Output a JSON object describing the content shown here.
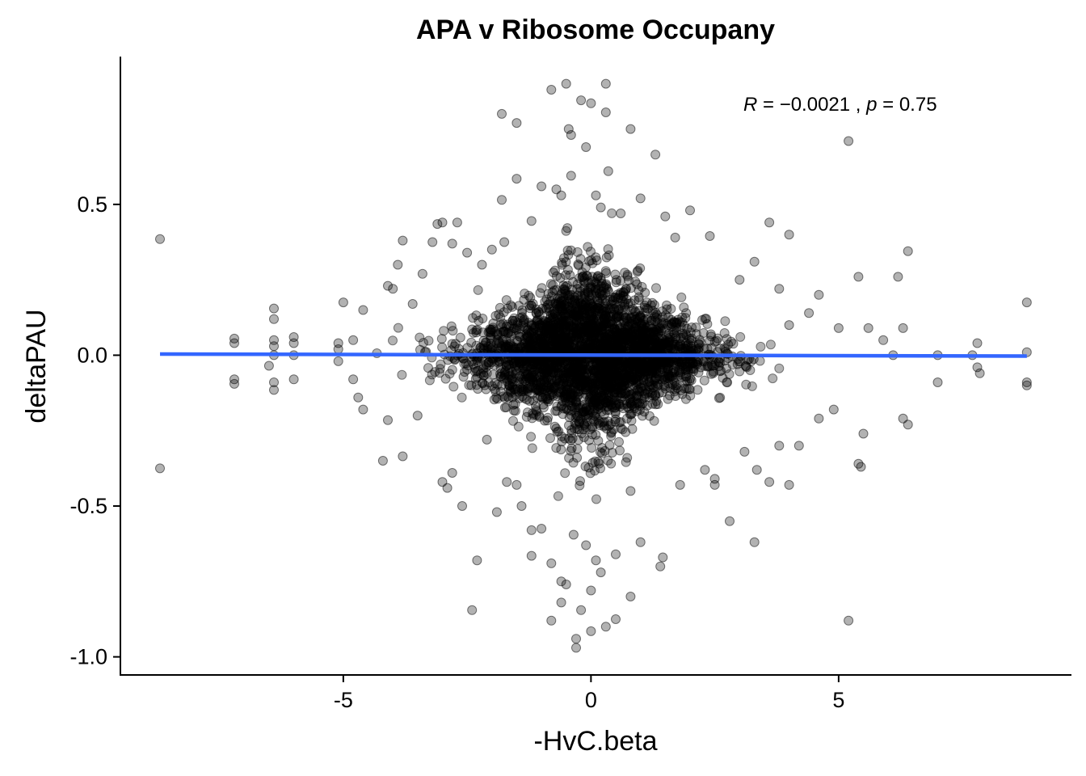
{
  "chart_data": {
    "type": "scatter",
    "title": "APA v Ribosome Occupany",
    "xlabel": "-HvC.beta",
    "ylabel": "deltaPAU",
    "xlim": [
      -9.5,
      9.7
    ],
    "ylim": [
      -1.06,
      0.99
    ],
    "x_ticks": [
      -5,
      0,
      5
    ],
    "x_tick_labels": [
      "-5",
      "0",
      "5"
    ],
    "y_ticks": [
      -1.0,
      -0.5,
      0.0,
      0.5
    ],
    "y_tick_labels": [
      "-1.0",
      "-0.5",
      "0.0",
      "0.5"
    ],
    "grid": false,
    "point_color": "#000000",
    "point_opacity": 0.3,
    "regression": {
      "color": "#3366ff",
      "x": [
        -8.7,
        8.8
      ],
      "y": [
        0.004,
        -0.003
      ]
    },
    "annotation": {
      "r_symbol": "R",
      "r_value": " = −0.0021 , ",
      "p_symbol": "p",
      "p_value": " = 0.75"
    },
    "points": [
      [
        -8.7,
        0.385
      ],
      [
        -8.7,
        -0.375
      ],
      [
        -7.2,
        0.055
      ],
      [
        -7.2,
        0.04
      ],
      [
        -7.2,
        -0.08
      ],
      [
        -7.2,
        -0.095
      ],
      [
        -6.4,
        0.155
      ],
      [
        -6.4,
        0.12
      ],
      [
        -6.4,
        0.05
      ],
      [
        -6.4,
        0.03
      ],
      [
        -6.4,
        0.0
      ],
      [
        -6.4,
        -0.09
      ],
      [
        -6.4,
        -0.115
      ],
      [
        -6.5,
        -0.035
      ],
      [
        -6.0,
        0.06
      ],
      [
        -6.0,
        0.04
      ],
      [
        -6.0,
        0.0
      ],
      [
        -6.0,
        -0.08
      ],
      [
        -5.1,
        0.04
      ],
      [
        -5.1,
        0.02
      ],
      [
        -5.1,
        -0.02
      ],
      [
        -5.0,
        0.175
      ],
      [
        -4.8,
        0.05
      ],
      [
        -4.8,
        -0.08
      ],
      [
        -4.6,
        0.15
      ],
      [
        -4.7,
        -0.14
      ],
      [
        -4.6,
        -0.18
      ],
      [
        -4.1,
        0.23
      ],
      [
        -4.0,
        0.22
      ],
      [
        -3.9,
        0.3
      ],
      [
        -3.8,
        0.38
      ],
      [
        -3.8,
        -0.335
      ],
      [
        -4.2,
        -0.35
      ],
      [
        -4.1,
        -0.215
      ],
      [
        -3.6,
        0.17
      ],
      [
        -3.5,
        -0.2
      ],
      [
        -3.4,
        0.27
      ],
      [
        -3.2,
        0.375
      ],
      [
        -3.1,
        0.435
      ],
      [
        -3.0,
        0.44
      ],
      [
        -3.0,
        -0.42
      ],
      [
        -2.9,
        -0.44
      ],
      [
        -2.8,
        0.37
      ],
      [
        -2.8,
        -0.39
      ],
      [
        -2.7,
        0.44
      ],
      [
        -2.6,
        -0.5
      ],
      [
        -2.5,
        0.34
      ],
      [
        -2.4,
        -0.845
      ],
      [
        -2.3,
        -0.68
      ],
      [
        -2.2,
        0.3
      ],
      [
        -2.1,
        -0.28
      ],
      [
        -2.0,
        0.35
      ],
      [
        -1.9,
        -0.52
      ],
      [
        -1.8,
        0.8
      ],
      [
        -1.8,
        0.515
      ],
      [
        -1.75,
        0.375
      ],
      [
        -1.7,
        -0.42
      ],
      [
        -1.5,
        0.77
      ],
      [
        -1.5,
        0.585
      ],
      [
        -1.5,
        -0.43
      ],
      [
        -1.4,
        -0.5
      ],
      [
        -1.2,
        0.445
      ],
      [
        -1.2,
        -0.665
      ],
      [
        -1.2,
        -0.58
      ],
      [
        -1.0,
        0.56
      ],
      [
        -1.0,
        -0.575
      ],
      [
        -0.8,
        0.88
      ],
      [
        -0.8,
        -0.88
      ],
      [
        -0.8,
        -0.69
      ],
      [
        -0.7,
        0.55
      ],
      [
        -0.6,
        0.53
      ],
      [
        -0.6,
        -0.82
      ],
      [
        -0.6,
        -0.75
      ],
      [
        -0.5,
        0.9
      ],
      [
        -0.5,
        -0.76
      ],
      [
        -0.4,
        0.73
      ],
      [
        -0.45,
        0.75
      ],
      [
        -0.4,
        0.595
      ],
      [
        -0.35,
        -0.595
      ],
      [
        -0.3,
        -0.97
      ],
      [
        -0.3,
        -0.94
      ],
      [
        -0.2,
        0.845
      ],
      [
        -0.2,
        -0.845
      ],
      [
        -0.1,
        0.69
      ],
      [
        -0.1,
        -0.63
      ],
      [
        0.0,
        0.835
      ],
      [
        0.0,
        -0.915
      ],
      [
        0.0,
        -0.78
      ],
      [
        0.1,
        0.53
      ],
      [
        0.1,
        -0.68
      ],
      [
        0.2,
        0.49
      ],
      [
        0.2,
        -0.72
      ],
      [
        0.3,
        0.9
      ],
      [
        0.3,
        0.805
      ],
      [
        0.3,
        -0.9
      ],
      [
        0.35,
        0.61
      ],
      [
        0.5,
        -0.875
      ],
      [
        0.5,
        -0.66
      ],
      [
        0.6,
        0.47
      ],
      [
        0.8,
        0.75
      ],
      [
        0.8,
        -0.8
      ],
      [
        0.8,
        -0.45
      ],
      [
        1.0,
        0.52
      ],
      [
        1.0,
        -0.62
      ],
      [
        1.3,
        0.665
      ],
      [
        1.4,
        -0.7
      ],
      [
        1.45,
        -0.67
      ],
      [
        1.5,
        0.46
      ],
      [
        1.7,
        0.39
      ],
      [
        1.8,
        -0.43
      ],
      [
        2.0,
        0.48
      ],
      [
        2.3,
        -0.38
      ],
      [
        2.4,
        0.395
      ],
      [
        2.5,
        -0.43
      ],
      [
        2.5,
        -0.41
      ],
      [
        2.8,
        -0.55
      ],
      [
        3.0,
        0.25
      ],
      [
        3.1,
        -0.32
      ],
      [
        3.3,
        0.31
      ],
      [
        3.3,
        -0.62
      ],
      [
        3.35,
        -0.38
      ],
      [
        3.6,
        0.44
      ],
      [
        3.6,
        -0.42
      ],
      [
        3.8,
        0.22
      ],
      [
        3.8,
        -0.3
      ],
      [
        4.0,
        0.4
      ],
      [
        4.0,
        -0.43
      ],
      [
        4.0,
        0.1
      ],
      [
        4.2,
        -0.3
      ],
      [
        4.4,
        0.14
      ],
      [
        4.6,
        0.2
      ],
      [
        4.6,
        -0.21
      ],
      [
        4.9,
        -0.18
      ],
      [
        5.0,
        0.09
      ],
      [
        5.2,
        0.71
      ],
      [
        5.2,
        -0.88
      ],
      [
        5.4,
        0.26
      ],
      [
        5.4,
        -0.36
      ],
      [
        5.45,
        -0.37
      ],
      [
        5.5,
        -0.26
      ],
      [
        5.6,
        0.09
      ],
      [
        5.9,
        0.05
      ],
      [
        6.2,
        0.26
      ],
      [
        6.3,
        0.09
      ],
      [
        6.3,
        -0.21
      ],
      [
        6.4,
        0.345
      ],
      [
        6.4,
        -0.23
      ],
      [
        6.1,
        0.0
      ],
      [
        7.0,
        0.0
      ],
      [
        7.0,
        -0.09
      ],
      [
        7.7,
        0.0
      ],
      [
        7.8,
        0.04
      ],
      [
        7.8,
        -0.04
      ],
      [
        7.85,
        -0.06
      ],
      [
        8.8,
        0.175
      ],
      [
        8.8,
        0.01
      ],
      [
        8.8,
        -0.09
      ],
      [
        8.8,
        -0.1
      ]
    ]
  }
}
